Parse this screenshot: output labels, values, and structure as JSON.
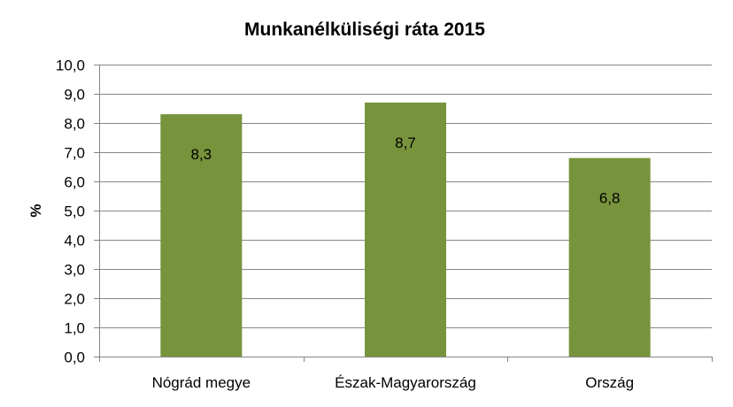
{
  "chart_data": {
    "type": "bar",
    "title": "Munkanélküliségi ráta 2015",
    "xlabel": "",
    "ylabel": "%",
    "categories": [
      "Nógrád megye",
      "Észak-Magyarország",
      "Ország"
    ],
    "values": [
      8.3,
      8.7,
      6.8
    ],
    "value_labels": [
      "8,3",
      "8,7",
      "6,8"
    ],
    "ylim": [
      0,
      10
    ],
    "yticks": [
      "0,0",
      "1,0",
      "2,0",
      "3,0",
      "4,0",
      "5,0",
      "6,0",
      "7,0",
      "8,0",
      "9,0",
      "10,0"
    ],
    "grid": true,
    "legend": "none",
    "bar_color": "#77933C"
  }
}
